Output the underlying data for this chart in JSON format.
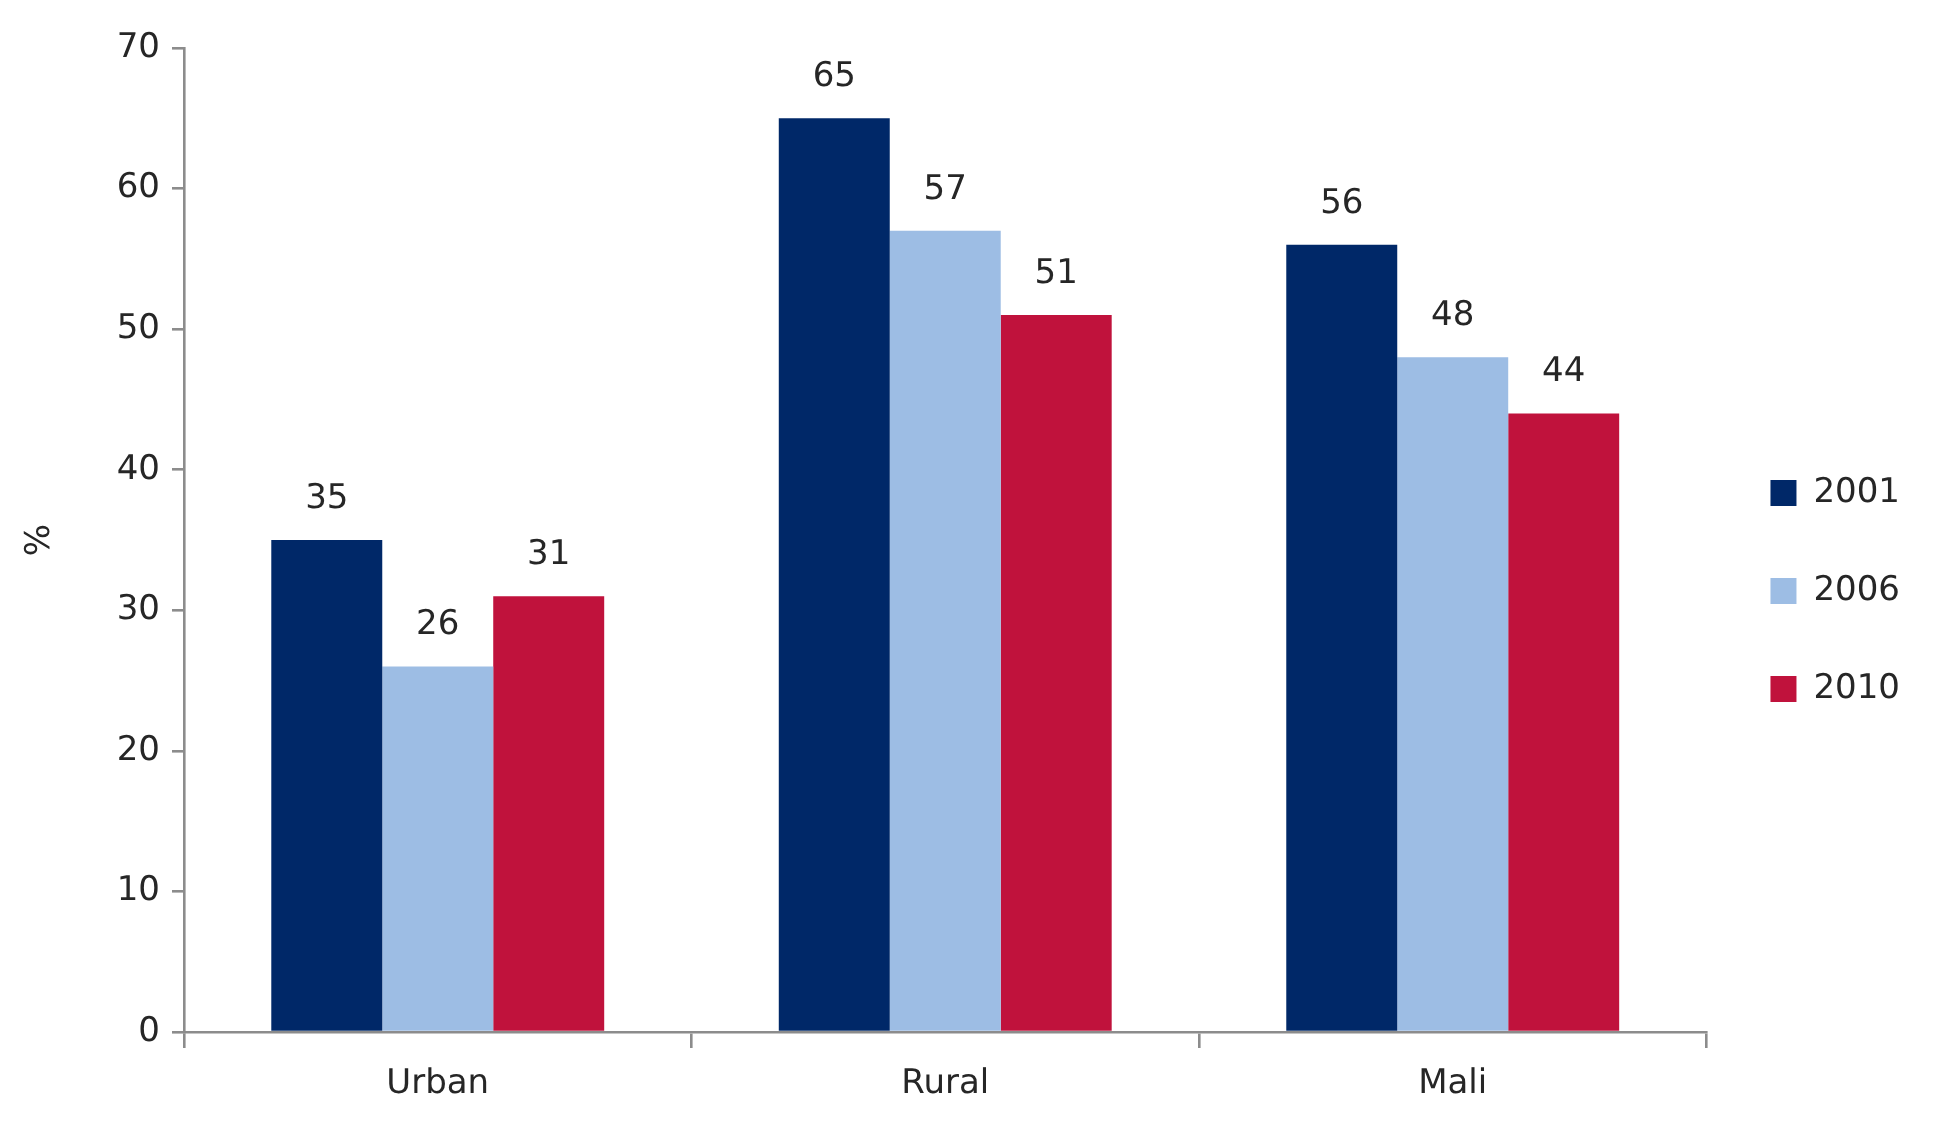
{
  "chart_data": {
    "type": "bar",
    "categories": [
      "Urban",
      "Rural",
      "Mali"
    ],
    "series": [
      {
        "name": "2001",
        "color": "#002868",
        "values": [
          35,
          65,
          56
        ]
      },
      {
        "name": "2006",
        "color": "#9dbde4",
        "values": [
          26,
          57,
          48
        ]
      },
      {
        "name": "2010",
        "color": "#c0123c",
        "values": [
          31,
          51,
          44
        ]
      }
    ],
    "ylabel": "%",
    "ylim": [
      0,
      70
    ],
    "yticks": [
      0,
      10,
      20,
      30,
      40,
      50,
      60,
      70
    ],
    "grid": false,
    "legend": "right",
    "data_labels": true
  }
}
